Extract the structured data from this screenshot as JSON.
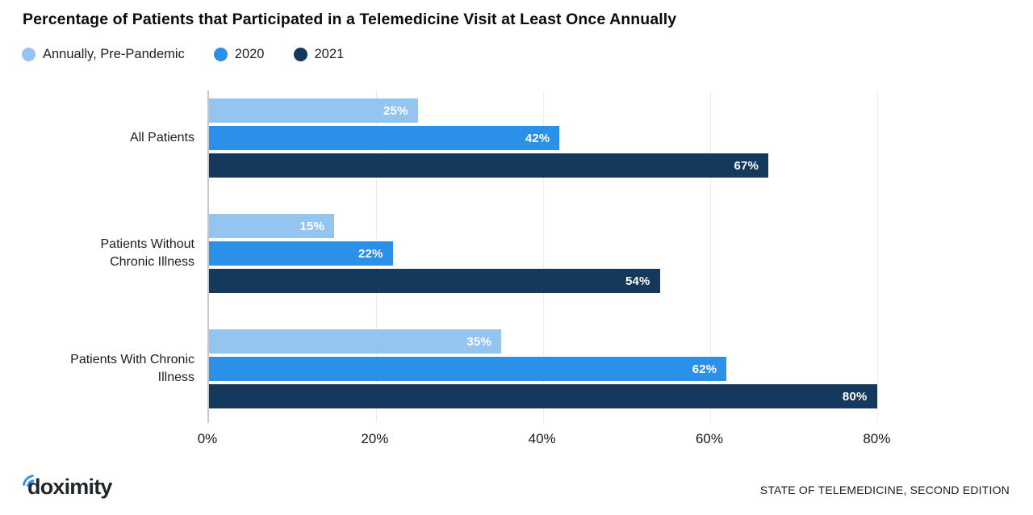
{
  "title": "Percentage of Patients that Participated in a Telemedicine Visit at Least Once Annually",
  "legend": [
    {
      "label": "Annually, Pre-Pandemic",
      "color": "#94c5f1"
    },
    {
      "label": "2020",
      "color": "#2b90e8"
    },
    {
      "label": "2021",
      "color": "#14395c"
    }
  ],
  "chart_data": {
    "type": "bar",
    "orientation": "horizontal",
    "title": "Percentage of Patients that Participated in a Telemedicine Visit at Least Once Annually",
    "categories": [
      "All Patients",
      "Patients Without Chronic Illness",
      "Patients With Chronic Illness"
    ],
    "series": [
      {
        "name": "Annually, Pre-Pandemic",
        "color": "#94c5f1",
        "values": [
          25,
          15,
          35
        ]
      },
      {
        "name": "2020",
        "color": "#2b90e8",
        "values": [
          42,
          22,
          62
        ]
      },
      {
        "name": "2021",
        "color": "#14395c",
        "values": [
          67,
          54,
          80
        ]
      }
    ],
    "value_suffix": "%",
    "xlim": [
      0,
      90
    ],
    "x_ticks": [
      "0%",
      "20%",
      "40%",
      "60%",
      "80%"
    ],
    "x_tick_values": [
      0,
      20,
      40,
      60,
      80
    ],
    "grid": true,
    "grid_color": "#ececec",
    "axis_line_color": "#c6c9cc",
    "value_label_color": "#ffffff",
    "legend_position": "top-left"
  },
  "footer": {
    "logo_text": "doximity",
    "logo_icon": "signal-arcs-icon",
    "logo_arc_color": "#2f90ea",
    "source_label": "STATE OF TELEMEDICINE, SECOND EDITION"
  }
}
